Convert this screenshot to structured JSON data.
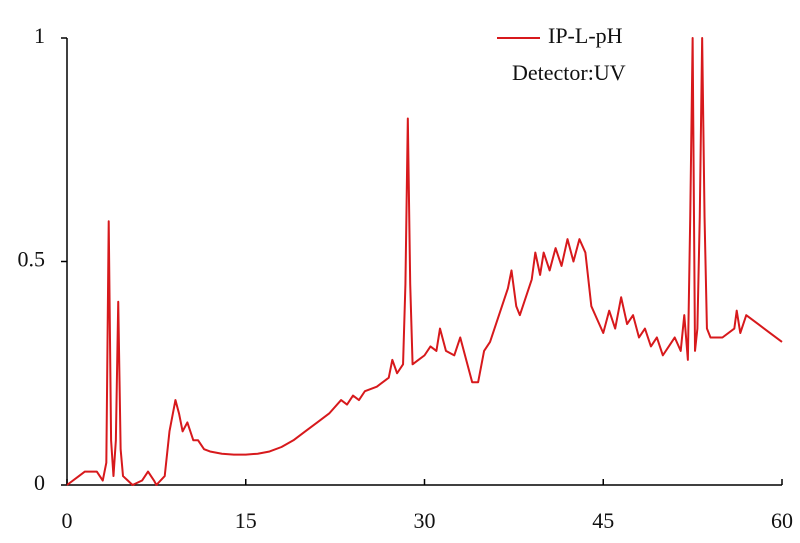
{
  "chart_data": {
    "type": "line",
    "annotation": "Detector:UV",
    "x": [
      0,
      1,
      1.5,
      2.5,
      3,
      3.3,
      3.5,
      3.7,
      3.9,
      4.1,
      4.3,
      4.5,
      4.7,
      5.5,
      6.3,
      6.8,
      7.3,
      7.5,
      8.2,
      8.6,
      9.1,
      9.4,
      9.7,
      10.1,
      10.6,
      11,
      11.5,
      12,
      13,
      14,
      15,
      16,
      17,
      18,
      19,
      20,
      21,
      22,
      23,
      23.5,
      24,
      24.5,
      25,
      26,
      27,
      27.3,
      27.7,
      28.2,
      28.4,
      28.6,
      28.8,
      29,
      29.5,
      30,
      30.5,
      31,
      31.3,
      31.8,
      32.5,
      33,
      33.5,
      34,
      34.5,
      35,
      35.5,
      36,
      36.5,
      37,
      37.3,
      37.7,
      38,
      38.5,
      39,
      39.3,
      39.7,
      40,
      40.5,
      41,
      41.5,
      42,
      42.5,
      43,
      43.5,
      44,
      44.5,
      45,
      45.5,
      46,
      46.5,
      47,
      47.5,
      48,
      48.5,
      49,
      49.5,
      50,
      50.5,
      51,
      51.5,
      51.8,
      52.1,
      52.3,
      52.5,
      52.7,
      52.9,
      53.1,
      53.3,
      53.5,
      53.7,
      54,
      55,
      56,
      56.2,
      56.5,
      57,
      58,
      59,
      60
    ],
    "series": [
      {
        "name": "IP-L-pH",
        "color": "#d7191c",
        "values": [
          0,
          0.02,
          0.03,
          0.03,
          0.01,
          0.05,
          0.59,
          0.1,
          0.02,
          0.1,
          0.41,
          0.08,
          0.02,
          0,
          0.01,
          0.03,
          0.01,
          0,
          0.02,
          0.12,
          0.19,
          0.16,
          0.12,
          0.14,
          0.1,
          0.1,
          0.08,
          0.075,
          0.07,
          0.068,
          0.068,
          0.07,
          0.075,
          0.085,
          0.1,
          0.12,
          0.14,
          0.16,
          0.19,
          0.18,
          0.2,
          0.19,
          0.21,
          0.22,
          0.24,
          0.28,
          0.25,
          0.27,
          0.45,
          0.82,
          0.45,
          0.27,
          0.28,
          0.29,
          0.31,
          0.3,
          0.35,
          0.3,
          0.29,
          0.33,
          0.28,
          0.23,
          0.23,
          0.3,
          0.32,
          0.36,
          0.4,
          0.44,
          0.48,
          0.4,
          0.38,
          0.42,
          0.46,
          0.52,
          0.47,
          0.52,
          0.48,
          0.53,
          0.49,
          0.55,
          0.5,
          0.55,
          0.52,
          0.4,
          0.37,
          0.34,
          0.39,
          0.35,
          0.42,
          0.36,
          0.38,
          0.33,
          0.35,
          0.31,
          0.33,
          0.29,
          0.31,
          0.33,
          0.3,
          0.38,
          0.28,
          0.6,
          1.0,
          0.3,
          0.35,
          0.6,
          1.0,
          0.6,
          0.35,
          0.33,
          0.33,
          0.35,
          0.39,
          0.34,
          0.38,
          0.36,
          0.34,
          0.32
        ]
      }
    ],
    "xlim": [
      0,
      60
    ],
    "xticks": [
      0,
      15,
      30,
      45,
      60
    ],
    "ylim": [
      0,
      1
    ],
    "yticks": [
      0,
      0.5,
      1
    ]
  }
}
